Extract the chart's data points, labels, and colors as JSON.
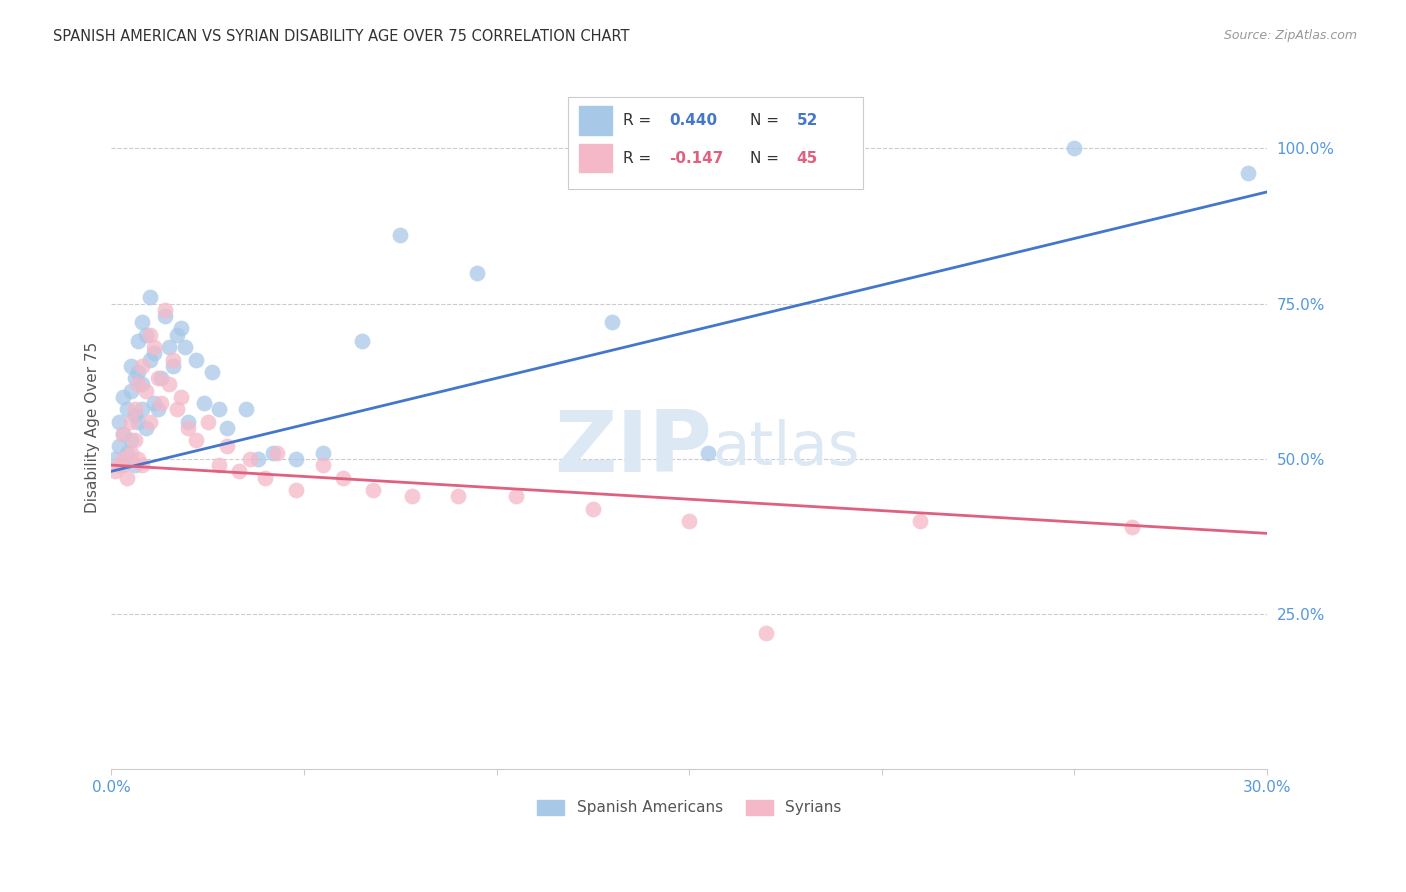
{
  "title": "SPANISH AMERICAN VS SYRIAN DISABILITY AGE OVER 75 CORRELATION CHART",
  "source": "Source: ZipAtlas.com",
  "ylabel": "Disability Age Over 75",
  "x_min": 0.0,
  "x_max": 0.3,
  "y_min": 0.0,
  "y_max": 1.1,
  "x_ticks": [
    0.0,
    0.05,
    0.1,
    0.15,
    0.2,
    0.25,
    0.3
  ],
  "x_tick_labels": [
    "0.0%",
    "",
    "",
    "",
    "",
    "",
    "30.0%"
  ],
  "y_ticks": [
    0.25,
    0.5,
    0.75,
    1.0
  ],
  "y_tick_labels": [
    "25.0%",
    "50.0%",
    "75.0%",
    "100.0%"
  ],
  "blue_R": 0.44,
  "blue_N": 52,
  "pink_R": -0.147,
  "pink_N": 45,
  "blue_color": "#a8c8e8",
  "pink_color": "#f5b8c8",
  "blue_line_color": "#4477cc",
  "pink_line_color": "#e06080",
  "tick_color": "#5599dd",
  "watermark_zip": "ZIP",
  "watermark_atlas": "atlas",
  "background_color": "#ffffff",
  "blue_x": [
    0.001,
    0.002,
    0.002,
    0.003,
    0.003,
    0.003,
    0.004,
    0.004,
    0.005,
    0.005,
    0.005,
    0.006,
    0.006,
    0.006,
    0.007,
    0.007,
    0.007,
    0.008,
    0.008,
    0.008,
    0.009,
    0.009,
    0.01,
    0.01,
    0.011,
    0.011,
    0.012,
    0.013,
    0.014,
    0.015,
    0.016,
    0.017,
    0.018,
    0.019,
    0.02,
    0.022,
    0.024,
    0.026,
    0.028,
    0.03,
    0.035,
    0.038,
    0.042,
    0.048,
    0.055,
    0.065,
    0.075,
    0.095,
    0.13,
    0.155,
    0.25,
    0.295
  ],
  "blue_y": [
    0.5,
    0.52,
    0.56,
    0.49,
    0.54,
    0.6,
    0.51,
    0.58,
    0.53,
    0.61,
    0.65,
    0.49,
    0.57,
    0.63,
    0.56,
    0.64,
    0.69,
    0.58,
    0.62,
    0.72,
    0.55,
    0.7,
    0.66,
    0.76,
    0.59,
    0.67,
    0.58,
    0.63,
    0.73,
    0.68,
    0.65,
    0.7,
    0.71,
    0.68,
    0.56,
    0.66,
    0.59,
    0.64,
    0.58,
    0.55,
    0.58,
    0.5,
    0.51,
    0.5,
    0.51,
    0.69,
    0.86,
    0.8,
    0.72,
    0.51,
    1.0,
    0.96
  ],
  "pink_x": [
    0.001,
    0.002,
    0.003,
    0.003,
    0.004,
    0.005,
    0.005,
    0.006,
    0.006,
    0.007,
    0.007,
    0.008,
    0.008,
    0.009,
    0.01,
    0.01,
    0.011,
    0.012,
    0.013,
    0.014,
    0.015,
    0.016,
    0.017,
    0.018,
    0.02,
    0.022,
    0.025,
    0.028,
    0.03,
    0.033,
    0.036,
    0.04,
    0.043,
    0.048,
    0.055,
    0.06,
    0.068,
    0.078,
    0.09,
    0.105,
    0.125,
    0.15,
    0.17,
    0.21,
    0.265
  ],
  "pink_y": [
    0.48,
    0.49,
    0.5,
    0.54,
    0.47,
    0.51,
    0.56,
    0.53,
    0.58,
    0.5,
    0.62,
    0.49,
    0.65,
    0.61,
    0.56,
    0.7,
    0.68,
    0.63,
    0.59,
    0.74,
    0.62,
    0.66,
    0.58,
    0.6,
    0.55,
    0.53,
    0.56,
    0.49,
    0.52,
    0.48,
    0.5,
    0.47,
    0.51,
    0.45,
    0.49,
    0.47,
    0.45,
    0.44,
    0.44,
    0.44,
    0.42,
    0.4,
    0.22,
    0.4,
    0.39
  ],
  "blue_line_x0": 0.0,
  "blue_line_y0": 0.48,
  "blue_line_x1": 0.3,
  "blue_line_y1": 0.93,
  "pink_line_x0": 0.0,
  "pink_line_y0": 0.49,
  "pink_line_x1": 0.3,
  "pink_line_y1": 0.38
}
